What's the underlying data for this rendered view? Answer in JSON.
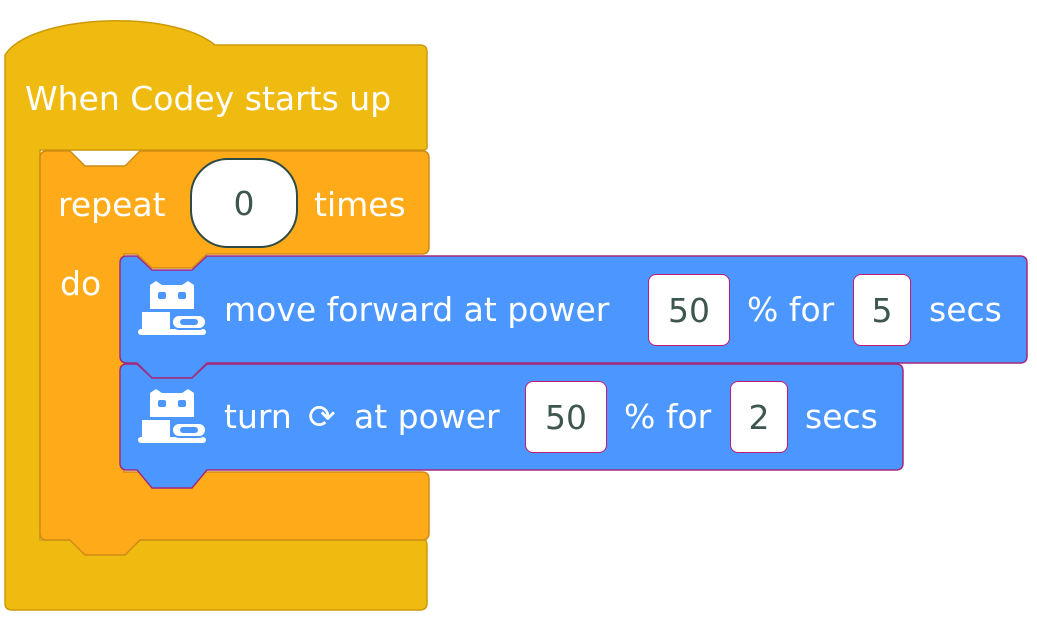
{
  "event_block": {
    "label": "When Codey starts up",
    "color": "#f0bb11"
  },
  "repeat_block": {
    "label_before": "repeat",
    "count": "0",
    "label_after": "times",
    "do_label": "do",
    "color": "#ffab19"
  },
  "move_block": {
    "icon": "codey-robot-icon",
    "label": "move forward at power",
    "power": "50",
    "label_mid": "% for",
    "duration": "5",
    "label_end": "secs",
    "color": "#4c97ff"
  },
  "turn_block": {
    "icon": "codey-robot-icon",
    "label": "turn",
    "direction_icon": "clockwise-arrow-icon",
    "direction_glyph": "⟳",
    "label_power": "at power",
    "power": "50",
    "label_mid": "% for",
    "duration": "2",
    "label_end": "secs",
    "color": "#4c97ff"
  }
}
